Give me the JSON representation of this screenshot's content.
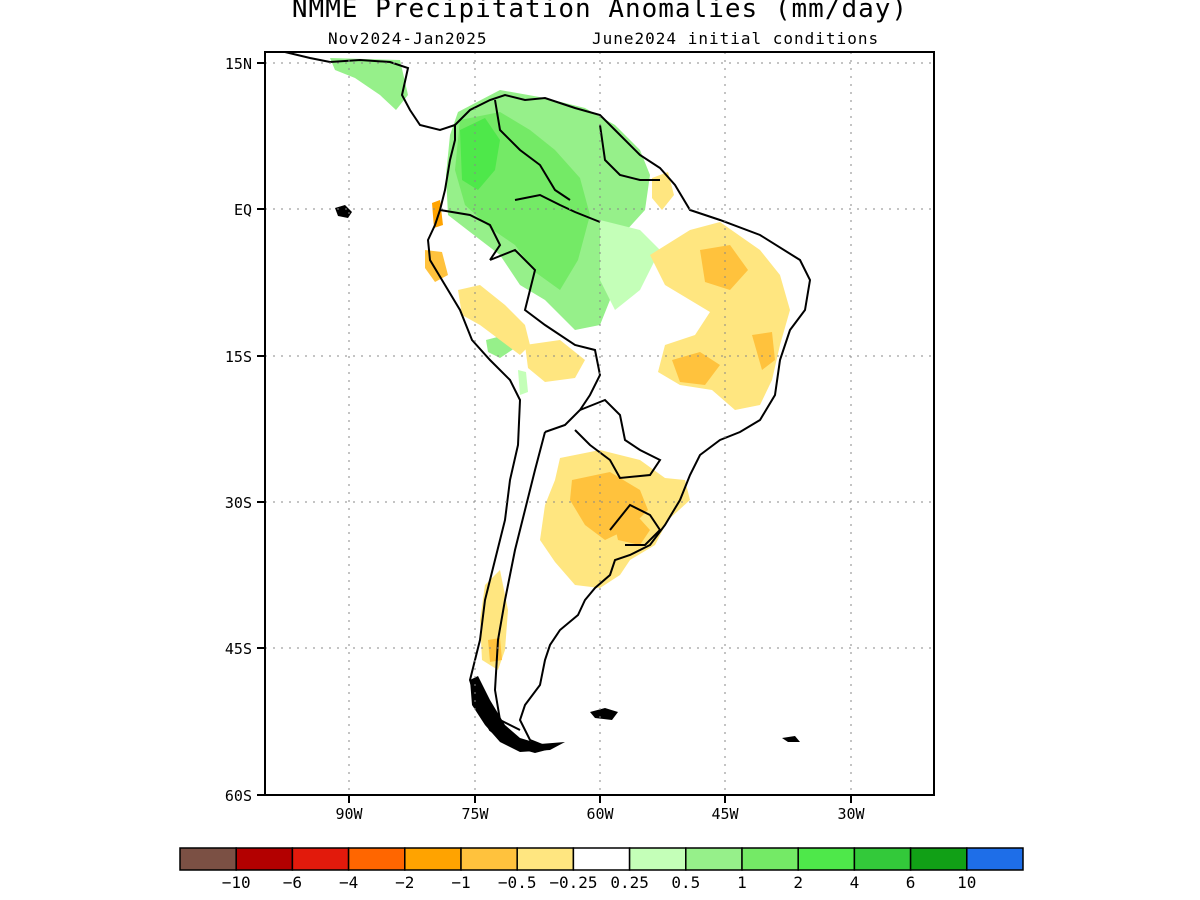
{
  "title": "NMME Precipitation Anomalies (mm/day)",
  "subtitle_period": "Nov2024-Jan2025",
  "subtitle_init": "June2024 initial conditions",
  "lat_labels": [
    "15N",
    "EQ",
    "15S",
    "30S",
    "45S",
    "60S"
  ],
  "lon_labels": [
    "90W",
    "75W",
    "60W",
    "45W",
    "30W"
  ],
  "colorbar": {
    "colors": [
      "#7b5044",
      "#b30000",
      "#e21a0c",
      "#ff6600",
      "#ffa300",
      "#ffc23d",
      "#ffe680",
      "#ffffff",
      "#c4ffb8",
      "#96f08a",
      "#74ea66",
      "#4ee84a",
      "#33c93a",
      "#11a016",
      "#1e6ee8"
    ],
    "labels": [
      "-10",
      "-6",
      "-4",
      "-2",
      "-1",
      "-0.5",
      "-0.25",
      "0.25",
      "0.5",
      "1",
      "2",
      "4",
      "6",
      "10"
    ]
  }
}
